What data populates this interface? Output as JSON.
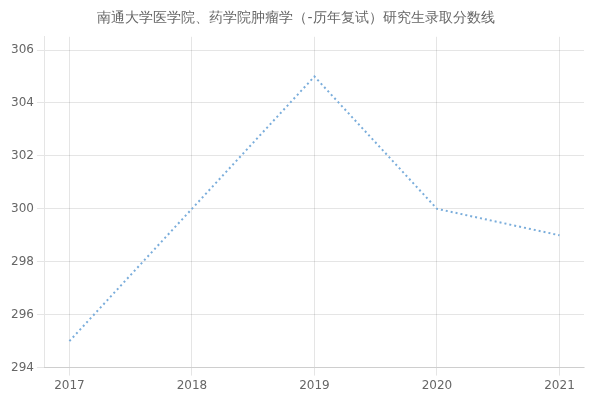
{
  "chart_data": {
    "type": "line",
    "title": "南通大学医学院、药学院肿瘤学（-历年复试）研究生录取分数线",
    "x": [
      2017,
      2018,
      2019,
      2020,
      2021
    ],
    "values": [
      295,
      300,
      305,
      300,
      299
    ],
    "color": "#7aaddb",
    "line_style": "dotted",
    "xlim": [
      2016.8,
      2021.2
    ],
    "xticks": [
      2017,
      2018,
      2019,
      2020,
      2021
    ],
    "ylim": [
      294,
      306.5
    ],
    "yticks": [
      294,
      296,
      298,
      300,
      302,
      304,
      306
    ],
    "grid": true
  }
}
